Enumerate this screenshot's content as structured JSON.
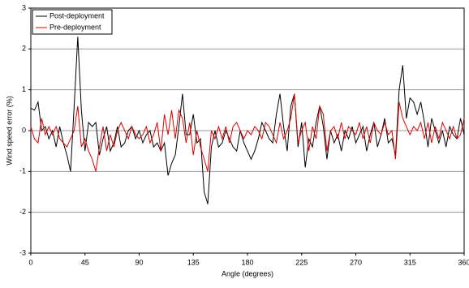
{
  "chart_data": {
    "type": "line",
    "x_label": "Angle (degrees)",
    "y_label": "Wind speed error (%)",
    "x": [
      0,
      3,
      6,
      9,
      12,
      15,
      18,
      21,
      24,
      27,
      30,
      33,
      36,
      39,
      42,
      45,
      48,
      51,
      54,
      57,
      60,
      63,
      66,
      69,
      72,
      75,
      78,
      81,
      84,
      87,
      90,
      93,
      96,
      99,
      102,
      105,
      108,
      111,
      114,
      117,
      120,
      123,
      126,
      129,
      132,
      135,
      138,
      141,
      144,
      147,
      150,
      153,
      156,
      159,
      162,
      165,
      168,
      171,
      174,
      177,
      180,
      183,
      186,
      189,
      192,
      195,
      198,
      201,
      204,
      207,
      210,
      213,
      216,
      219,
      222,
      225,
      228,
      231,
      234,
      237,
      240,
      243,
      246,
      249,
      252,
      255,
      258,
      261,
      264,
      267,
      270,
      273,
      276,
      279,
      282,
      285,
      288,
      291,
      294,
      297,
      300,
      303,
      306,
      309,
      312,
      315,
      318,
      321,
      324,
      327,
      330,
      333,
      336,
      339,
      342,
      345,
      348,
      351,
      354,
      357,
      360
    ],
    "series": [
      {
        "name": "Post-deployment",
        "color": "#000000",
        "values": [
          0.55,
          0.5,
          0.7,
          0.0,
          0.1,
          -0.2,
          0.0,
          -0.4,
          0.1,
          -0.3,
          -0.6,
          -1.0,
          0.6,
          2.3,
          0.5,
          -0.5,
          0.2,
          0.1,
          0.2,
          -0.6,
          -0.2,
          0.1,
          -0.5,
          -0.3,
          0.1,
          -0.4,
          -0.3,
          0.0,
          0.1,
          -0.2,
          0.0,
          -0.3,
          -0.1,
          0.0,
          -0.4,
          -0.3,
          -0.5,
          -0.3,
          -1.1,
          -0.8,
          -0.6,
          0.1,
          0.9,
          -0.1,
          -0.1,
          0.4,
          -0.3,
          -0.2,
          -1.5,
          -1.8,
          -0.4,
          0.0,
          -0.4,
          -0.3,
          0.0,
          -0.2,
          -0.4,
          -0.5,
          0.0,
          -0.3,
          -0.5,
          -0.7,
          -0.5,
          -0.2,
          0.2,
          0.0,
          -0.2,
          -0.3,
          0.4,
          0.9,
          0.1,
          -0.5,
          0.6,
          0.9,
          -0.4,
          0.2,
          -0.9,
          -0.2,
          -0.4,
          0.2,
          0.6,
          0.1,
          -0.7,
          0.0,
          -0.3,
          -0.1,
          -0.5,
          0.0,
          -0.2,
          0.1,
          -0.3,
          -0.1,
          0.1,
          -0.5,
          -0.1,
          0.2,
          -0.4,
          -0.1,
          0.3,
          -0.3,
          -0.2,
          -0.6,
          1.0,
          1.6,
          0.3,
          0.8,
          0.7,
          0.4,
          0.7,
          0.2,
          -0.4,
          0.3,
          0.0,
          -0.3,
          0.0,
          -0.4,
          0.1,
          -0.1,
          -0.2,
          0.3,
          -0.1
        ]
      },
      {
        "name": "Pre-deployment",
        "color": "#e00000",
        "values": [
          0.1,
          -0.2,
          -0.3,
          0.3,
          -0.1,
          0.1,
          -0.1,
          0.1,
          -0.2,
          -0.3,
          -0.4,
          -0.2,
          0.0,
          0.6,
          -0.4,
          -0.2,
          -0.5,
          -0.7,
          -1.0,
          -0.4,
          0.1,
          -0.5,
          -0.1,
          -0.4,
          0.0,
          0.2,
          0.0,
          -0.2,
          0.1,
          -0.1,
          -0.2,
          -0.1,
          0.1,
          -0.3,
          -0.1,
          0.2,
          -0.5,
          0.4,
          -0.1,
          0.5,
          -0.2,
          0.5,
          0.3,
          -0.3,
          0.2,
          -0.6,
          0.0,
          -0.4,
          -0.7,
          -1.0,
          0.0,
          -0.2,
          0.1,
          -0.2,
          0.1,
          -0.3,
          0.1,
          0.2,
          0.0,
          -0.2,
          0.0,
          -0.1,
          0.1,
          0.0,
          -0.2,
          0.2,
          0.1,
          -0.1,
          -0.3,
          0.2,
          -0.2,
          0.0,
          0.3,
          0.9,
          -0.3,
          0.0,
          0.2,
          -0.5,
          0.1,
          -0.2,
          0.6,
          0.4,
          -0.5,
          0.0,
          0.1,
          -0.2,
          0.2,
          -0.2,
          0.1,
          0.0,
          -0.1,
          0.2,
          -0.2,
          0.1,
          -0.3,
          0.2,
          0.0,
          -0.1,
          0.2,
          -0.1,
          0.0,
          -0.7,
          0.7,
          0.3,
          0.1,
          -0.1,
          0.1,
          0.0,
          0.2,
          -0.2,
          0.2,
          -0.3,
          0.1,
          -0.2,
          0.2,
          0.0,
          -0.2,
          0.1,
          -0.2,
          -0.1,
          0.3
        ]
      }
    ],
    "xlim": [
      0,
      360
    ],
    "xticks": [
      0,
      45,
      90,
      135,
      180,
      225,
      270,
      315,
      360
    ],
    "ylim": [
      -3,
      3
    ],
    "yticks": [
      -3,
      -2,
      -1,
      0,
      1,
      2,
      3
    ],
    "grid": true,
    "legend": "upper-left"
  }
}
